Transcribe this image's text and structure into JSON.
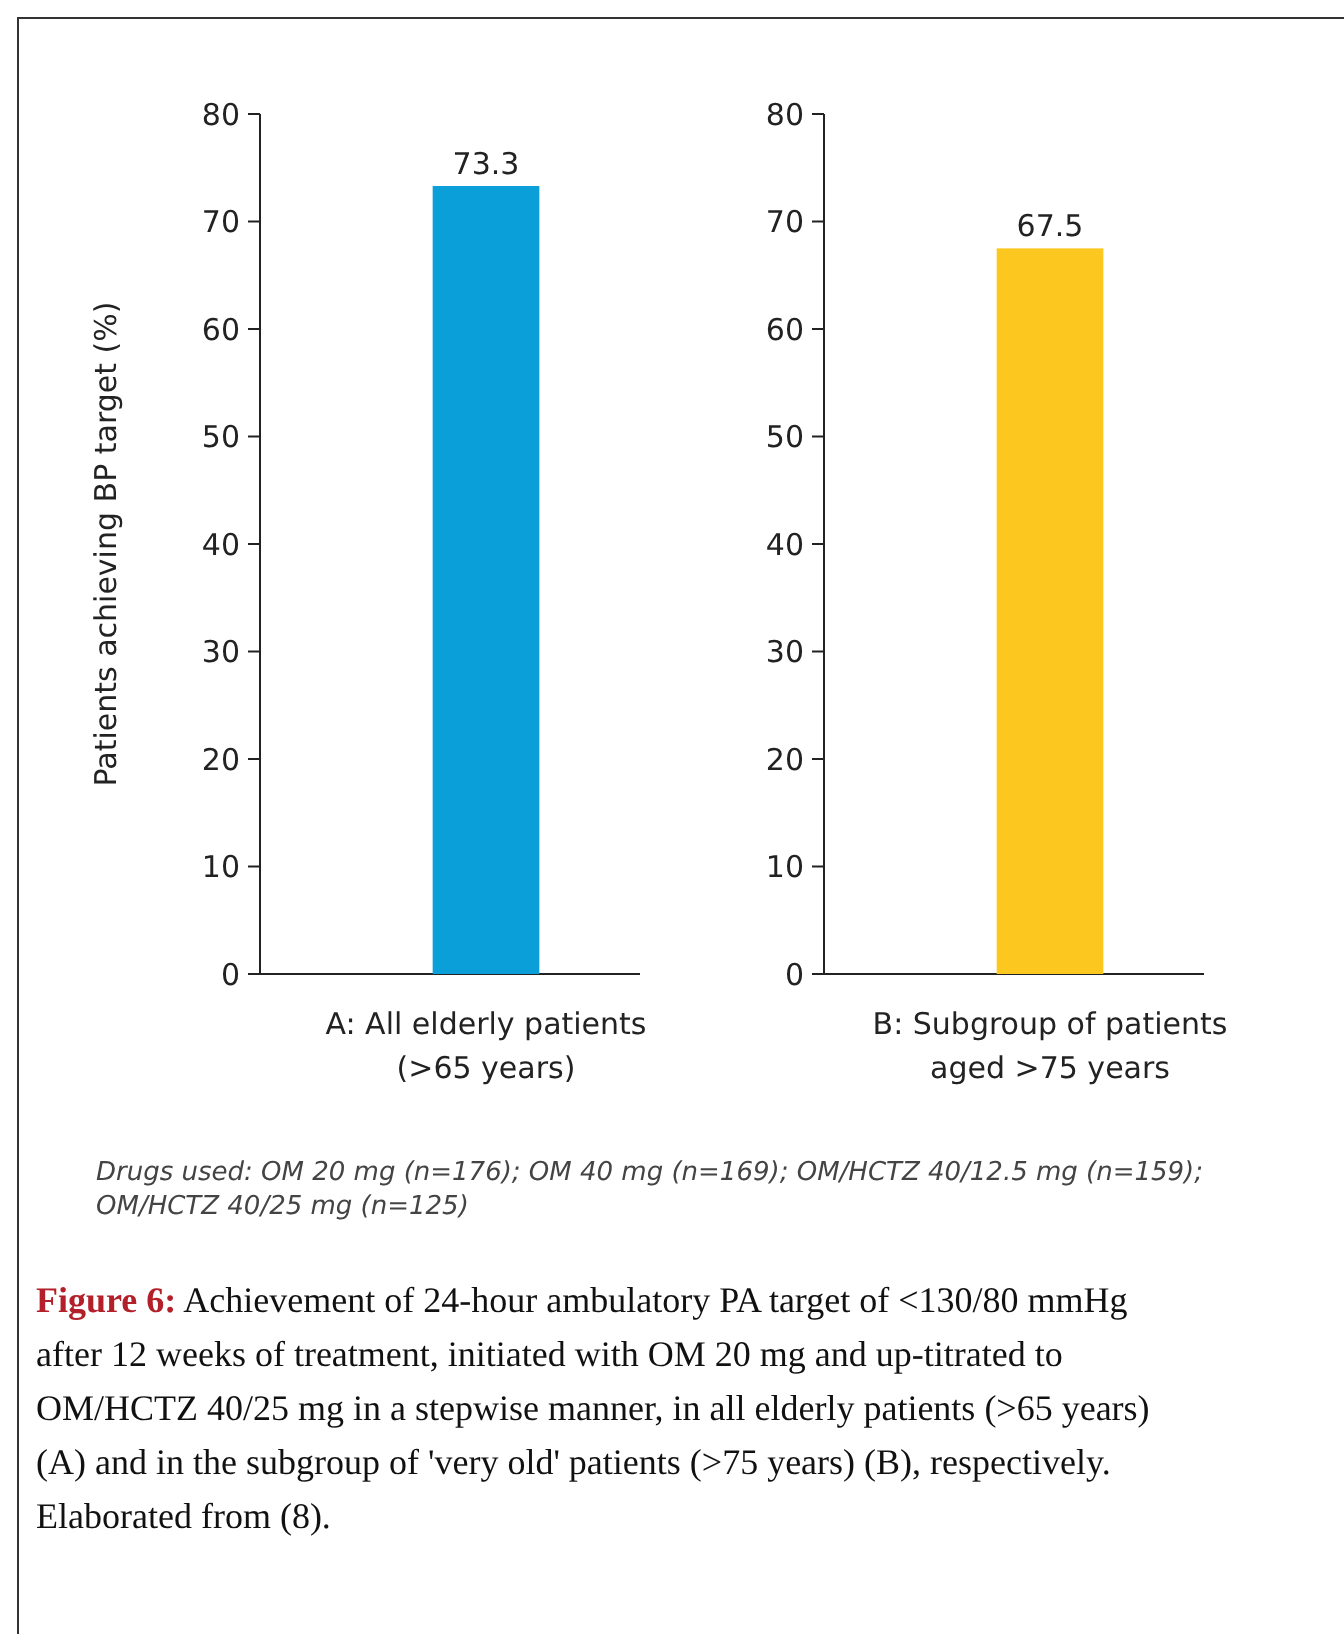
{
  "chart_data": [
    {
      "type": "bar",
      "ylabel": "Patients achieving BP target (%)",
      "categories": [
        "A:  All elderly patients\n(>65 years)"
      ],
      "values": [
        73.3
      ],
      "color": "#0a9fd8",
      "ylim": [
        0,
        80
      ],
      "yticks": [
        0,
        10,
        20,
        30,
        40,
        50,
        60,
        70,
        80
      ],
      "data_labels": true,
      "annotations": [
        "Drugs used: OM 20 mg (n=176); OM 40 mg (n=169); OM/HCTZ 40/12.5 mg (n=159); OM/HCTZ 40/25 mg (n=125)",
        "Figure 6: Achievement of 24-hour ambulatory PA target of <130/80 mmHg after 12 weeks of treatment, initiated with OM 20 mg and up-titrated to OM/HCTZ 40/25 mg in a stepwise manner, in all elderly patients (>65 years) (A) and in the subgroup of 'very old' patients (>75 years) (B), respectively. Elaborated from (8)."
      ]
    },
    {
      "type": "bar",
      "categories": [
        "B:  Subgroup of patients\naged >75 years"
      ],
      "values": [
        67.5
      ],
      "color": "#fcc820",
      "ylim": [
        0,
        80
      ],
      "yticks": [
        0,
        10,
        20,
        30,
        40,
        50,
        60,
        70,
        80
      ],
      "data_labels": true
    }
  ]
}
